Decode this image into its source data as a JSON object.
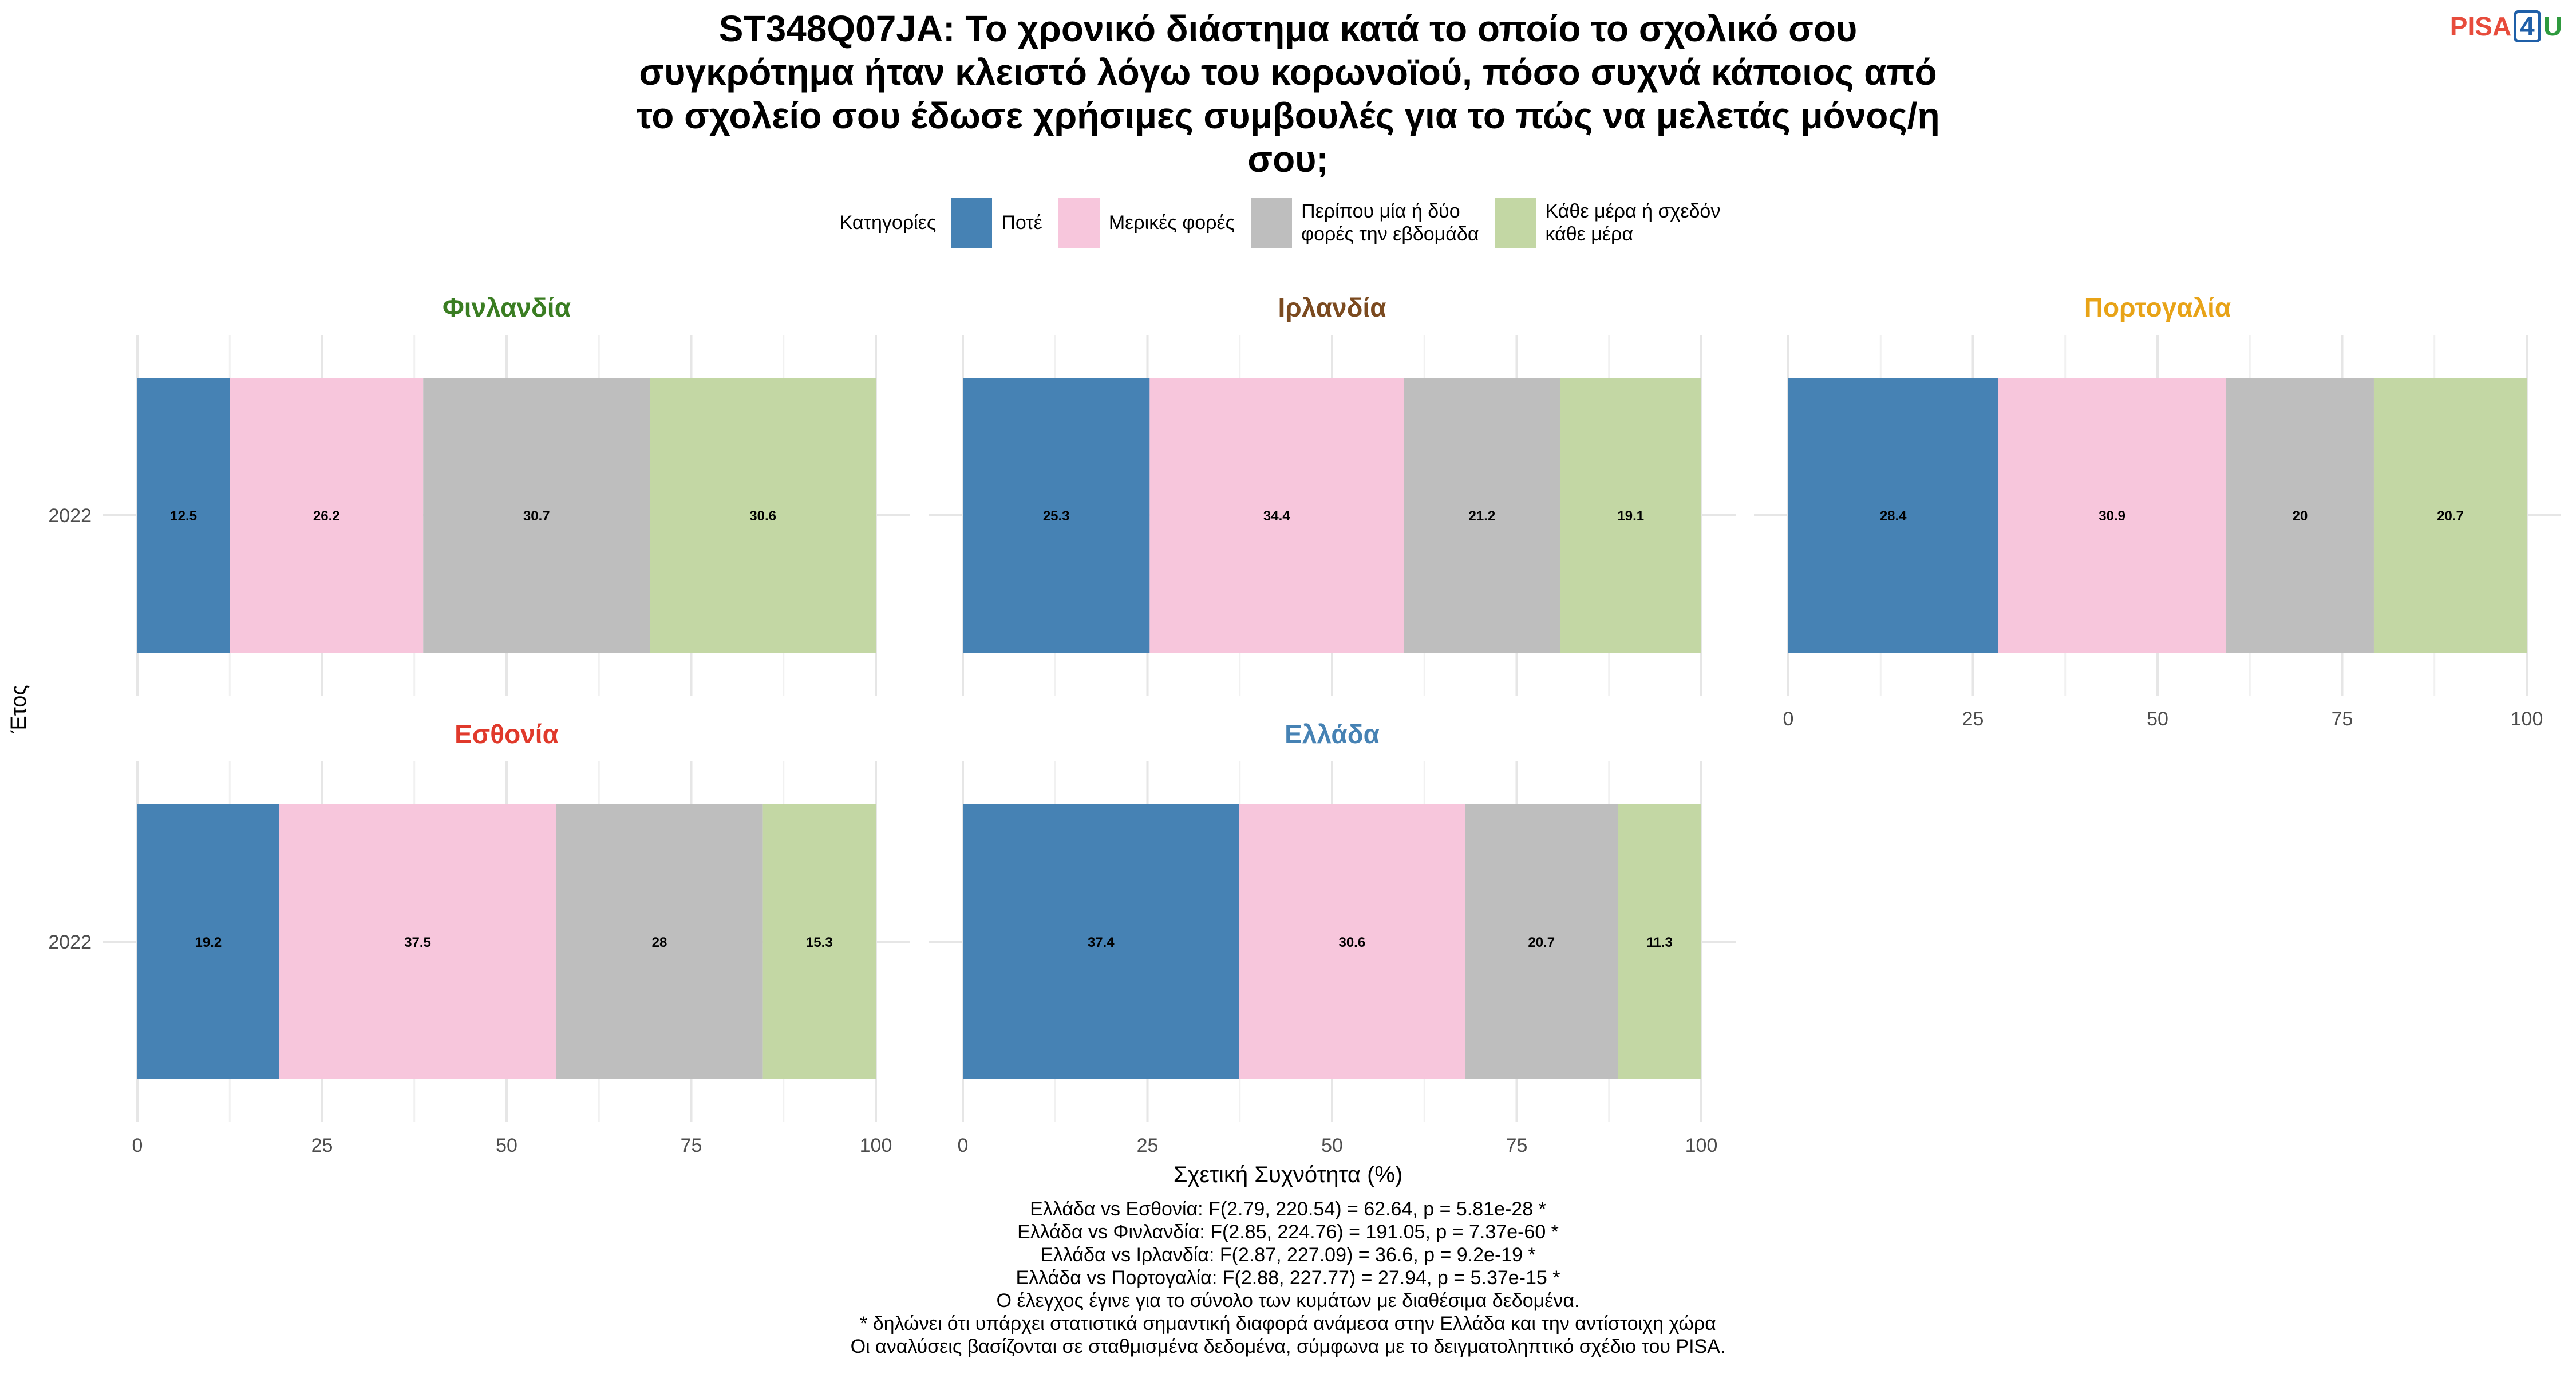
{
  "title_lines": [
    "ST348Q07JA: Το χρονικό διάστημα κατά το οποίο το σχολικό σου",
    "συγκρότημα ήταν κλειστό λόγω του κορωνοϊού, πόσο συχνά κάποιος από",
    "το σχολείο σου έδωσε χρήσιμες συμβουλές για το πώς να μελετάς μόνος/η",
    "σου;"
  ],
  "logo": {
    "left": "PISA",
    "mid": "4",
    "right": "U"
  },
  "legend": {
    "title": "Κατηγορίες",
    "items": [
      {
        "label": "Ποτέ",
        "color": "#4682b4"
      },
      {
        "label": "Μερικές φορές",
        "color": "#f7c6dc"
      },
      {
        "label": "Περίπου μία ή δύο\nφορές την εβδομάδα",
        "color": "#bebebe"
      },
      {
        "label": "Κάθε μέρα ή σχεδόν\nκάθε μέρα",
        "color": "#c3d7a4"
      }
    ]
  },
  "chart_data": {
    "type": "bar",
    "orientation": "horizontal",
    "stacked": true,
    "xlabel": "Σχετική Συχνότητα (%)",
    "ylabel": "Έτος",
    "xlim": [
      0,
      100
    ],
    "xticks": [
      0,
      25,
      50,
      75,
      100
    ],
    "categories_y": [
      "2022"
    ],
    "series_names": [
      "Ποτέ",
      "Μερικές φορές",
      "Περίπου μία ή δύο φορές την εβδομάδα",
      "Κάθε μέρα ή σχεδόν κάθε μέρα"
    ],
    "series_colors": [
      "#4682b4",
      "#f7c6dc",
      "#bebebe",
      "#c3d7a4"
    ],
    "panels": [
      {
        "name": "Φινλανδία",
        "color": "#3a7d22",
        "year": "2022",
        "values": [
          12.5,
          26.2,
          30.7,
          30.6
        ],
        "labels": [
          "12.5",
          "26.2",
          "30.7",
          "30.6"
        ]
      },
      {
        "name": "Ιρλανδία",
        "color": "#7b4a1f",
        "year": "2022",
        "values": [
          25.3,
          34.4,
          21.2,
          19.1
        ],
        "labels": [
          "25.3",
          "34.4",
          "21.2",
          "19.1"
        ]
      },
      {
        "name": "Πορτογαλία",
        "color": "#e8a317",
        "year": "2022",
        "values": [
          28.4,
          30.9,
          20,
          20.7
        ],
        "labels": [
          "28.4",
          "30.9",
          "20",
          "20.7"
        ]
      },
      {
        "name": "Εσθονία",
        "color": "#e0392b",
        "year": "2022",
        "values": [
          19.2,
          37.5,
          28,
          15.3
        ],
        "labels": [
          "19.2",
          "37.5",
          "28",
          "15.3"
        ]
      },
      {
        "name": "Ελλάδα",
        "color": "#4682b4",
        "year": "2022",
        "values": [
          37.4,
          30.6,
          20.7,
          11.3
        ],
        "labels": [
          "37.4",
          "30.6",
          "20.7",
          "11.3"
        ]
      }
    ]
  },
  "notes": [
    "Ελλάδα vs Εσθονία: F(2.79, 220.54) = 62.64, p = 5.81e-28 *",
    "Ελλάδα vs Φινλανδία: F(2.85, 224.76) = 191.05, p = 7.37e-60 *",
    "Ελλάδα vs Ιρλανδία: F(2.87, 227.09) = 36.6, p = 9.2e-19 *",
    "Ελλάδα vs Πορτογαλία: F(2.88, 227.77) = 27.94, p = 5.37e-15 *",
    "Ο έλεγχος έγινε για το σύνολο των κυμάτων με διαθέσιμα δεδομένα.",
    "* δηλώνει ότι υπάρχει στατιστικά σημαντική διαφορά ανάμεσα στην Ελλάδα και την αντίστοιχη χώρα",
    "Οι αναλύσεις βασίζονται σε σταθμισμένα δεδομένα, σύμφωνα με το δειγματοληπτικό σχέδιο του PISA."
  ]
}
